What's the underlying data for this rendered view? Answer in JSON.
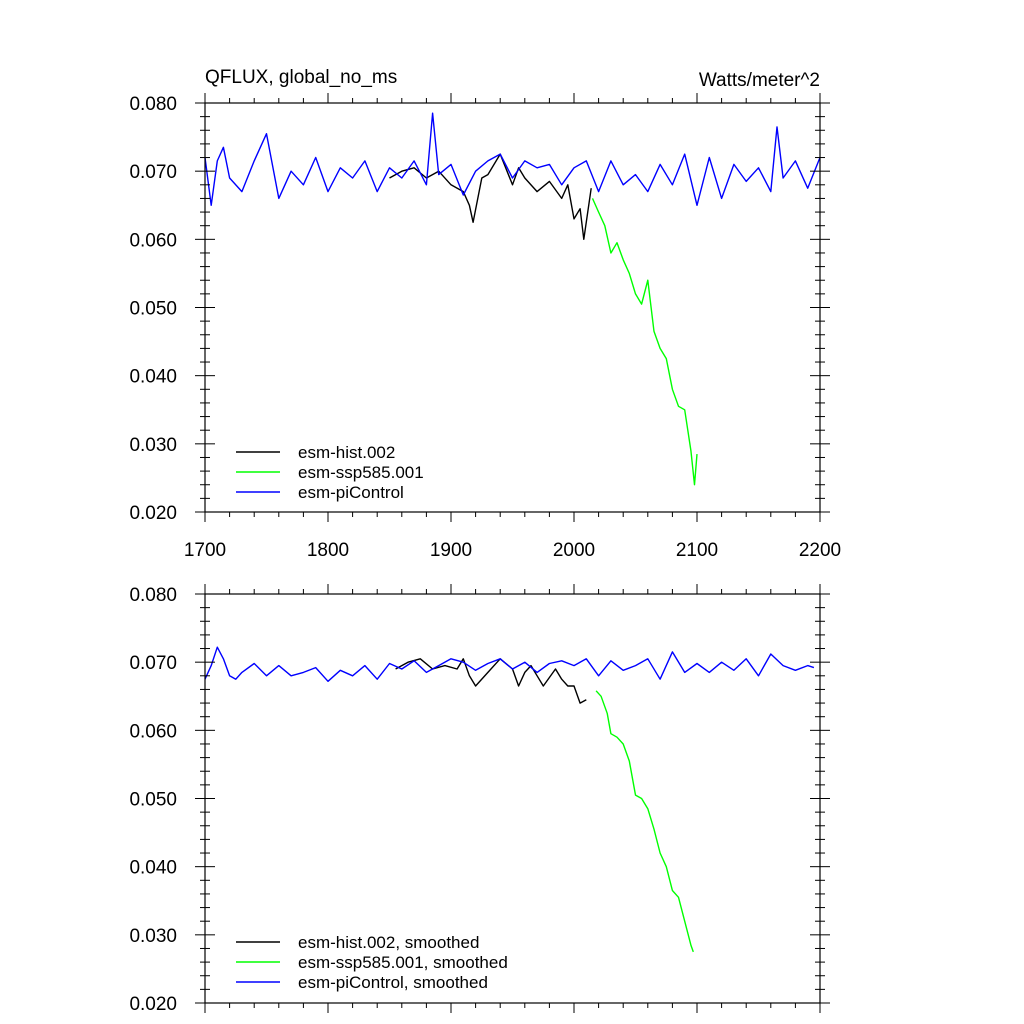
{
  "chart_data": [
    {
      "type": "line",
      "title": "QFLUX, global_no_ms",
      "units": "Watts/meter^2",
      "xlim": [
        1700,
        2200
      ],
      "ylim": [
        0.02,
        0.08
      ],
      "xticks": [
        1700,
        1800,
        1900,
        2000,
        2100,
        2200
      ],
      "yticks": [
        "0.020",
        "0.030",
        "0.040",
        "0.050",
        "0.060",
        "0.070",
        "0.080"
      ],
      "legend": "bottom-left",
      "series": [
        {
          "name": "esm-hist.002",
          "color": "#000000",
          "x": [
            1850,
            1860,
            1870,
            1880,
            1890,
            1900,
            1910,
            1915,
            1918,
            1925,
            1930,
            1940,
            1950,
            1955,
            1960,
            1970,
            1980,
            1990,
            1995,
            2000,
            2005,
            2008,
            2014
          ],
          "y": [
            0.069,
            0.07,
            0.0705,
            0.069,
            0.07,
            0.068,
            0.067,
            0.065,
            0.0625,
            0.069,
            0.0695,
            0.0725,
            0.068,
            0.0705,
            0.069,
            0.067,
            0.0685,
            0.066,
            0.068,
            0.063,
            0.0645,
            0.06,
            0.0675
          ]
        },
        {
          "name": "esm-ssp585.001",
          "color": "#00ff00",
          "x": [
            2015,
            2020,
            2025,
            2030,
            2035,
            2040,
            2045,
            2050,
            2055,
            2060,
            2065,
            2070,
            2075,
            2080,
            2085,
            2090,
            2095,
            2098,
            2100
          ],
          "y": [
            0.066,
            0.064,
            0.062,
            0.058,
            0.0595,
            0.057,
            0.055,
            0.052,
            0.0505,
            0.054,
            0.0465,
            0.044,
            0.0425,
            0.038,
            0.0355,
            0.035,
            0.029,
            0.024,
            0.0285
          ]
        },
        {
          "name": "esm-piControl",
          "color": "#0000ff",
          "x": [
            1700,
            1705,
            1710,
            1715,
            1720,
            1730,
            1740,
            1750,
            1760,
            1770,
            1780,
            1790,
            1800,
            1810,
            1820,
            1830,
            1840,
            1850,
            1860,
            1870,
            1880,
            1885,
            1890,
            1900,
            1910,
            1920,
            1930,
            1940,
            1950,
            1960,
            1970,
            1980,
            1990,
            2000,
            2010,
            2020,
            2030,
            2040,
            2050,
            2060,
            2070,
            2080,
            2090,
            2100,
            2110,
            2120,
            2130,
            2140,
            2150,
            2160,
            2165,
            2170,
            2180,
            2190,
            2200
          ],
          "y": [
            0.072,
            0.065,
            0.0715,
            0.0735,
            0.069,
            0.067,
            0.0715,
            0.0755,
            0.066,
            0.07,
            0.068,
            0.072,
            0.067,
            0.0705,
            0.069,
            0.0715,
            0.067,
            0.0705,
            0.069,
            0.0715,
            0.068,
            0.0785,
            0.0695,
            0.071,
            0.0665,
            0.07,
            0.0715,
            0.0725,
            0.069,
            0.0715,
            0.0705,
            0.071,
            0.068,
            0.0705,
            0.0715,
            0.067,
            0.0715,
            0.068,
            0.0695,
            0.067,
            0.071,
            0.068,
            0.0725,
            0.065,
            0.072,
            0.066,
            0.071,
            0.0685,
            0.0705,
            0.067,
            0.0765,
            0.069,
            0.0715,
            0.0675,
            0.072
          ]
        }
      ]
    },
    {
      "type": "line",
      "xlim": [
        1700,
        2200
      ],
      "ylim": [
        0.02,
        0.08
      ],
      "yticks": [
        "0.020",
        "0.030",
        "0.040",
        "0.050",
        "0.060",
        "0.070",
        "0.080"
      ],
      "legend": "bottom-left",
      "series": [
        {
          "name": "esm-hist.002, smoothed",
          "color": "#000000",
          "x": [
            1855,
            1865,
            1875,
            1885,
            1895,
            1905,
            1910,
            1915,
            1920,
            1930,
            1940,
            1950,
            1955,
            1960,
            1965,
            1970,
            1975,
            1985,
            1990,
            1995,
            2000,
            2005,
            2010
          ],
          "y": [
            0.069,
            0.07,
            0.0705,
            0.069,
            0.0695,
            0.069,
            0.0705,
            0.068,
            0.0665,
            0.0685,
            0.0705,
            0.069,
            0.0665,
            0.0685,
            0.0695,
            0.068,
            0.0665,
            0.069,
            0.0675,
            0.0665,
            0.0665,
            0.064,
            0.0645
          ]
        },
        {
          "name": "esm-ssp585.001, smoothed",
          "color": "#00ff00",
          "x": [
            2018,
            2022,
            2027,
            2030,
            2035,
            2040,
            2045,
            2050,
            2055,
            2060,
            2065,
            2070,
            2075,
            2080,
            2085,
            2090,
            2095,
            2097
          ],
          "y": [
            0.0658,
            0.065,
            0.0625,
            0.0595,
            0.059,
            0.058,
            0.0555,
            0.0505,
            0.05,
            0.0485,
            0.0455,
            0.042,
            0.04,
            0.0365,
            0.0355,
            0.032,
            0.0285,
            0.0275
          ]
        },
        {
          "name": "esm-piControl, smoothed",
          "color": "#0000ff",
          "x": [
            1700,
            1705,
            1710,
            1715,
            1720,
            1725,
            1730,
            1740,
            1750,
            1760,
            1770,
            1780,
            1790,
            1800,
            1810,
            1820,
            1830,
            1840,
            1850,
            1860,
            1870,
            1880,
            1890,
            1900,
            1910,
            1920,
            1930,
            1940,
            1950,
            1960,
            1970,
            1980,
            1990,
            2000,
            2010,
            2020,
            2030,
            2040,
            2050,
            2060,
            2070,
            2080,
            2090,
            2100,
            2110,
            2120,
            2130,
            2140,
            2150,
            2160,
            2170,
            2180,
            2190,
            2195
          ],
          "y": [
            0.0675,
            0.0695,
            0.0722,
            0.0705,
            0.068,
            0.0675,
            0.0685,
            0.0698,
            0.068,
            0.0695,
            0.068,
            0.0685,
            0.0692,
            0.0672,
            0.0688,
            0.068,
            0.0695,
            0.0675,
            0.0698,
            0.069,
            0.0702,
            0.0685,
            0.0695,
            0.0705,
            0.07,
            0.0688,
            0.0698,
            0.0705,
            0.069,
            0.07,
            0.0685,
            0.0698,
            0.0702,
            0.0695,
            0.0705,
            0.068,
            0.0702,
            0.0688,
            0.0695,
            0.0705,
            0.0675,
            0.0715,
            0.0685,
            0.0698,
            0.0685,
            0.07,
            0.0688,
            0.0705,
            0.068,
            0.0712,
            0.0695,
            0.0688,
            0.0695,
            0.0692
          ]
        }
      ]
    }
  ]
}
